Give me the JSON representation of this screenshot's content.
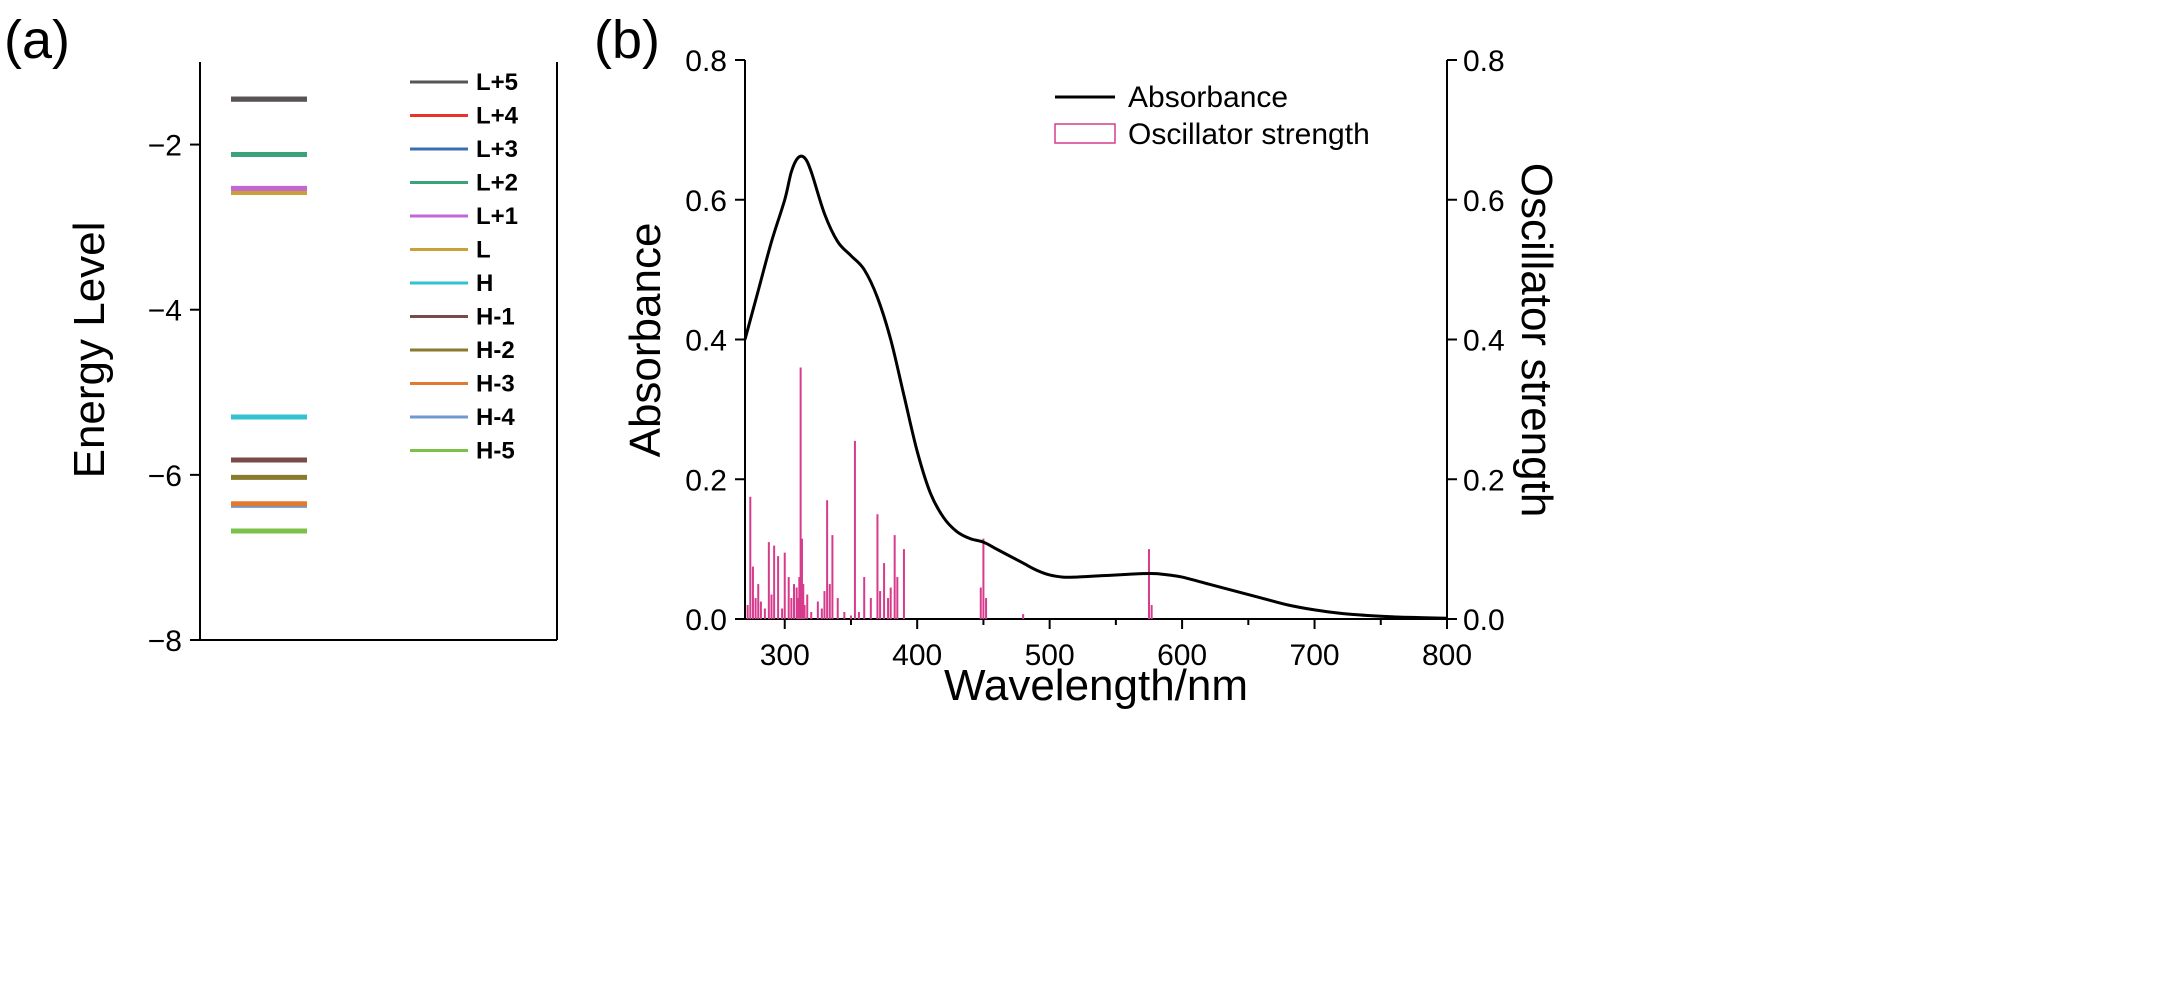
{
  "chart_data": [
    {
      "panel_label": "(a)",
      "type": "energy-level diagram",
      "ylabel": "Energy Level",
      "ylim": [
        -8,
        -1
      ],
      "yticks": [
        -2,
        -4,
        -6,
        -8
      ],
      "ytick_labels": [
        "−2",
        "−4",
        "−6",
        "−8"
      ],
      "legend_position": "top-right",
      "levels": [
        {
          "name": "L+5",
          "value": -1.45,
          "color": "#555555"
        },
        {
          "name": "L+4",
          "value": -1.45,
          "color": "#e8332a"
        },
        {
          "name": "L+3",
          "value": -1.45,
          "color": "#3b6cb4"
        },
        {
          "name": "L+2",
          "value": -2.12,
          "color": "#3aa37a"
        },
        {
          "name": "L+1",
          "value": -2.53,
          "color": "#c167d6"
        },
        {
          "name": "L",
          "value": -2.58,
          "color": "#c9a03a"
        },
        {
          "name": "H",
          "value": -5.3,
          "color": "#33c2cf"
        },
        {
          "name": "H-1",
          "value": -5.82,
          "color": "#7a4a48"
        },
        {
          "name": "H-2",
          "value": -6.03,
          "color": "#8a7a2e"
        },
        {
          "name": "H-3",
          "value": -6.35,
          "color": "#e07a2f"
        },
        {
          "name": "H-4",
          "value": -6.37,
          "color": "#6f9ad1"
        },
        {
          "name": "H-5",
          "value": -6.68,
          "color": "#7cc24a"
        }
      ]
    },
    {
      "panel_label": "(b)",
      "type": "line",
      "xlabel": "Wavelength/nm",
      "ylabel": "Absorbance",
      "y2label": "Oscillator strength",
      "xlim": [
        270,
        800
      ],
      "ylim": [
        0,
        0.8
      ],
      "y2lim": [
        0,
        0.8
      ],
      "xticks": [
        300,
        400,
        500,
        600,
        700,
        800
      ],
      "xtick_labels": [
        "300",
        "400",
        "500",
        "600",
        "700",
        "800"
      ],
      "yticks": [
        0,
        0.2,
        0.4,
        0.6,
        0.8
      ],
      "ytick_labels": [
        "0.0",
        "0.2",
        "0.4",
        "0.6",
        "0.8"
      ],
      "y2tick_labels": [
        "0.0",
        "0.2",
        "0.4",
        "0.6",
        "0.8"
      ],
      "legend_position": "top-right",
      "series": [
        {
          "name": "Absorbance",
          "kind": "line",
          "color": "#000000",
          "x": [
            270,
            280,
            290,
            300,
            305,
            310,
            315,
            320,
            330,
            340,
            350,
            360,
            370,
            380,
            390,
            400,
            410,
            420,
            430,
            440,
            450,
            460,
            470,
            480,
            490,
            500,
            510,
            520,
            530,
            540,
            550,
            560,
            570,
            580,
            590,
            600,
            620,
            640,
            660,
            680,
            700,
            720,
            740,
            760,
            780,
            800
          ],
          "y": [
            0.4,
            0.47,
            0.54,
            0.6,
            0.64,
            0.66,
            0.66,
            0.64,
            0.58,
            0.54,
            0.52,
            0.5,
            0.46,
            0.4,
            0.32,
            0.24,
            0.18,
            0.145,
            0.125,
            0.115,
            0.11,
            0.1,
            0.09,
            0.08,
            0.07,
            0.063,
            0.06,
            0.06,
            0.061,
            0.062,
            0.063,
            0.064,
            0.065,
            0.065,
            0.063,
            0.06,
            0.05,
            0.04,
            0.03,
            0.02,
            0.013,
            0.008,
            0.005,
            0.003,
            0.002,
            0.001
          ]
        },
        {
          "name": "Oscillator strength",
          "kind": "stick",
          "color": "#d63b8c",
          "axis": "right",
          "x": [
            272,
            274,
            276,
            278,
            280,
            282,
            285,
            288,
            290,
            292,
            295,
            298,
            300,
            303,
            305,
            307,
            309,
            310,
            311,
            312,
            313,
            314,
            315,
            317,
            320,
            325,
            328,
            330,
            332,
            334,
            336,
            340,
            345,
            350,
            353,
            356,
            360,
            365,
            370,
            372,
            375,
            378,
            380,
            383,
            385,
            390,
            448,
            450,
            452,
            480,
            575,
            577
          ],
          "y": [
            0.02,
            0.175,
            0.075,
            0.03,
            0.05,
            0.025,
            0.015,
            0.11,
            0.035,
            0.105,
            0.09,
            0.015,
            0.095,
            0.06,
            0.03,
            0.05,
            0.045,
            0.03,
            0.06,
            0.36,
            0.115,
            0.05,
            0.02,
            0.035,
            0.01,
            0.025,
            0.015,
            0.04,
            0.17,
            0.05,
            0.12,
            0.03,
            0.01,
            0.005,
            0.255,
            0.01,
            0.06,
            0.03,
            0.15,
            0.04,
            0.08,
            0.03,
            0.045,
            0.12,
            0.06,
            0.1,
            0.045,
            0.115,
            0.03,
            0.007,
            0.1,
            0.02
          ]
        }
      ]
    }
  ]
}
